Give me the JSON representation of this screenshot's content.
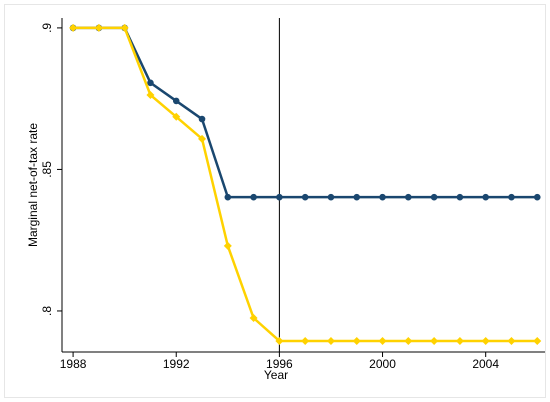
{
  "chart_data": {
    "type": "line",
    "x": [
      1988,
      1989,
      1990,
      1991,
      1992,
      1993,
      1994,
      1995,
      1996,
      1997,
      1998,
      1999,
      2000,
      2001,
      2002,
      2003,
      2004,
      2005,
      2006
    ],
    "series": [
      {
        "color": "#1a476f",
        "marker": "circle",
        "values": [
          0.9,
          0.9,
          0.9,
          0.8806,
          0.8742,
          0.8678,
          0.8402,
          0.8402,
          0.8402,
          0.8402,
          0.8402,
          0.8402,
          0.8402,
          0.8402,
          0.8402,
          0.8402,
          0.8402,
          0.8402,
          0.8402
        ]
      },
      {
        "color": "#ffd200",
        "marker": "diamond",
        "values": [
          0.9,
          0.9,
          0.9,
          0.8763,
          0.8686,
          0.8608,
          0.823,
          0.7975,
          0.7894,
          0.7894,
          0.7894,
          0.7894,
          0.7894,
          0.7894,
          0.7894,
          0.7894,
          0.7894,
          0.7894,
          0.7894
        ]
      }
    ],
    "x_label": "Year",
    "y_label": "Marginal net-of-tax rate",
    "xlim": [
      1987.57,
      2006.3
    ],
    "ylim": [
      0.7855,
      0.9035
    ],
    "xticks": [
      1988,
      1992,
      1996,
      2000,
      2004
    ],
    "yticks": [
      {
        "value": 0.8,
        "label": ".8"
      },
      {
        "value": 0.85,
        "label": ".85"
      },
      {
        "value": 0.9,
        "label": ".9"
      }
    ],
    "xline": 1996
  }
}
